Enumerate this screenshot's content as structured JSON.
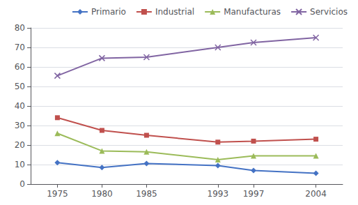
{
  "chart_data": {
    "type": "line",
    "x": [
      1975,
      1980,
      1985,
      1993,
      1997,
      2004
    ],
    "series": [
      {
        "name": "Primario",
        "color": "#4472C4",
        "marker": "diamond",
        "values": [
          11,
          8.5,
          10.5,
          9.5,
          7,
          5.5
        ]
      },
      {
        "name": "Industrial",
        "color": "#C0504D",
        "marker": "square",
        "values": [
          34,
          27.5,
          25,
          21.5,
          22,
          23
        ]
      },
      {
        "name": "Manufacturas",
        "color": "#9BBB59",
        "marker": "triangle",
        "values": [
          26,
          17,
          16.5,
          12.5,
          14.5,
          14.5
        ]
      },
      {
        "name": "Servicios",
        "color": "#8064A2",
        "marker": "x",
        "values": [
          55.5,
          64.5,
          65,
          70,
          72.5,
          75
        ]
      }
    ],
    "xlim": [
      1972,
      2007
    ],
    "xticks": [
      1975,
      1980,
      1985,
      1993,
      1997,
      2004
    ],
    "ylim": [
      0,
      80
    ],
    "yticks": [
      0,
      10,
      20,
      30,
      40,
      50,
      60,
      70,
      80
    ],
    "grid": true,
    "legend": "upper right"
  }
}
